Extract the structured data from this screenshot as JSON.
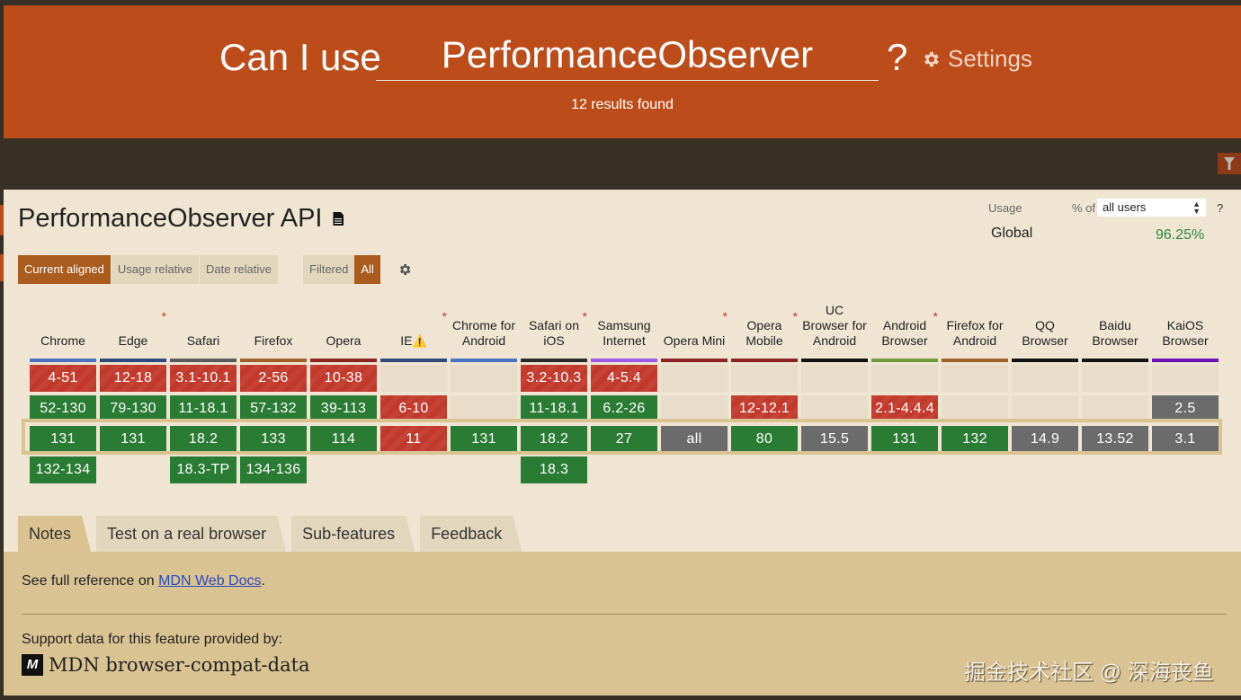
{
  "header": {
    "prefix": "Can I use",
    "search_value": "PerformanceObserver",
    "question_mark": "?",
    "settings_label": "Settings",
    "results_text": "12 results found"
  },
  "feature": {
    "title": "PerformanceObserver API",
    "view_modes": [
      "Current aligned",
      "Usage relative",
      "Date relative"
    ],
    "active_view": "Current aligned",
    "filter_modes": [
      "Filtered",
      "All"
    ],
    "active_filter": "All",
    "usage": {
      "label": "Usage",
      "pct_of": "% of",
      "selected": "all users",
      "help": "?",
      "region": "Global",
      "value": "96.25%"
    }
  },
  "colors": {
    "header_bg": "#bc4c1a",
    "supported": "#2a7b34",
    "not_supported": "#c1392b",
    "unknown": "#6b6b6b",
    "active_toggle": "#a95c1e",
    "usage_green": "#2b8a3e"
  },
  "browsers": [
    {
      "name": "Chrome",
      "bar": "#4a74bf",
      "asterisk": false,
      "rows": [
        [
          "4-51",
          "n"
        ],
        [
          "52-130",
          "y"
        ],
        [
          "131",
          "y"
        ],
        [
          "132-134",
          "y"
        ]
      ]
    },
    {
      "name": "Edge",
      "bar": "#2e4a7a",
      "asterisk": true,
      "rows": [
        [
          "12-18",
          "n"
        ],
        [
          "79-130",
          "y"
        ],
        [
          "131",
          "y"
        ],
        null
      ]
    },
    {
      "name": "Safari",
      "bar": "#5a5a5a",
      "asterisk": false,
      "rows": [
        [
          "3.1-10.1",
          "n"
        ],
        [
          "11-18.1",
          "y"
        ],
        [
          "18.2",
          "y"
        ],
        [
          "18.3-TP",
          "y"
        ]
      ]
    },
    {
      "name": "Firefox",
      "bar": "#a0602a",
      "asterisk": false,
      "rows": [
        [
          "2-56",
          "n"
        ],
        [
          "57-132",
          "y"
        ],
        [
          "133",
          "y"
        ],
        [
          "134-136",
          "y"
        ]
      ]
    },
    {
      "name": "Opera",
      "bar": "#8c2424",
      "asterisk": false,
      "rows": [
        [
          "10-38",
          "n"
        ],
        [
          "39-113",
          "y"
        ],
        [
          "114",
          "y"
        ],
        null
      ]
    },
    {
      "name": "IE",
      "warning": true,
      "bar": "#2e4a7a",
      "asterisk": true,
      "rows": [
        [
          "",
          "e"
        ],
        [
          "6-10",
          "n"
        ],
        [
          "11",
          "n"
        ],
        null
      ]
    },
    {
      "name": "Chrome for Android",
      "bar": "#4a74bf",
      "asterisk": false,
      "rows": [
        [
          "",
          "e"
        ],
        [
          "",
          "e"
        ],
        [
          "131",
          "y"
        ],
        null
      ]
    },
    {
      "name": "Safari on iOS",
      "bar": "#2a2a2a",
      "asterisk": true,
      "rows": [
        [
          "3.2-10.3",
          "n"
        ],
        [
          "11-18.1",
          "y"
        ],
        [
          "18.2",
          "y"
        ],
        [
          "18.3",
          "y"
        ]
      ]
    },
    {
      "name": "Samsung Internet",
      "bar": "#9a5ae6",
      "asterisk": false,
      "rows": [
        [
          "4-5.4",
          "n"
        ],
        [
          "6.2-26",
          "y"
        ],
        [
          "27",
          "y"
        ],
        null
      ]
    },
    {
      "name": "Opera Mini",
      "bar": "#8c2424",
      "asterisk": true,
      "rows": [
        [
          "",
          "e"
        ],
        [
          "",
          "e"
        ],
        [
          "all",
          "u"
        ],
        null
      ]
    },
    {
      "name": "Opera Mobile",
      "bar": "#8c2424",
      "asterisk": true,
      "rows": [
        [
          "",
          "e"
        ],
        [
          "12-12.1",
          "n"
        ],
        [
          "80",
          "y"
        ],
        null
      ]
    },
    {
      "name": "UC Browser for Android",
      "bar": "#111111",
      "asterisk": false,
      "rows": [
        [
          "",
          "e"
        ],
        [
          "",
          "e"
        ],
        [
          "15.5",
          "u"
        ],
        null
      ]
    },
    {
      "name": "Android Browser",
      "bar": "#6f9a3e",
      "asterisk": true,
      "rows": [
        [
          "",
          "e"
        ],
        [
          "2.1-4.4.4",
          "n"
        ],
        [
          "131",
          "y"
        ],
        null
      ]
    },
    {
      "name": "Firefox for Android",
      "bar": "#a0602a",
      "asterisk": false,
      "rows": [
        [
          "",
          "e"
        ],
        [
          "",
          "e"
        ],
        [
          "132",
          "y"
        ],
        null
      ]
    },
    {
      "name": "QQ Browser",
      "bar": "#111111",
      "asterisk": false,
      "rows": [
        [
          "",
          "e"
        ],
        [
          "",
          "e"
        ],
        [
          "14.9",
          "u"
        ],
        null
      ]
    },
    {
      "name": "Baidu Browser",
      "bar": "#111111",
      "asterisk": false,
      "rows": [
        [
          "",
          "e"
        ],
        [
          "",
          "e"
        ],
        [
          "13.52",
          "u"
        ],
        null
      ]
    },
    {
      "name": "KaiOS Browser",
      "bar": "#6a12b4",
      "asterisk": false,
      "rows": [
        [
          "",
          "e"
        ],
        [
          "2.5",
          "u"
        ],
        [
          "3.1",
          "u"
        ],
        null
      ]
    }
  ],
  "tabs": [
    "Notes",
    "Test on a real browser",
    "Sub-features",
    "Feedback"
  ],
  "active_tab": "Notes",
  "notes": {
    "ref_prefix": "See full reference on ",
    "ref_link": "MDN Web Docs",
    "ref_suffix": ".",
    "provided_by": "Support data for this feature provided by:",
    "mdn_logo": "M",
    "mdn_label": "MDN browser-compat-data"
  },
  "watermark": "掘金技术社区 @ 深海丧鱼"
}
